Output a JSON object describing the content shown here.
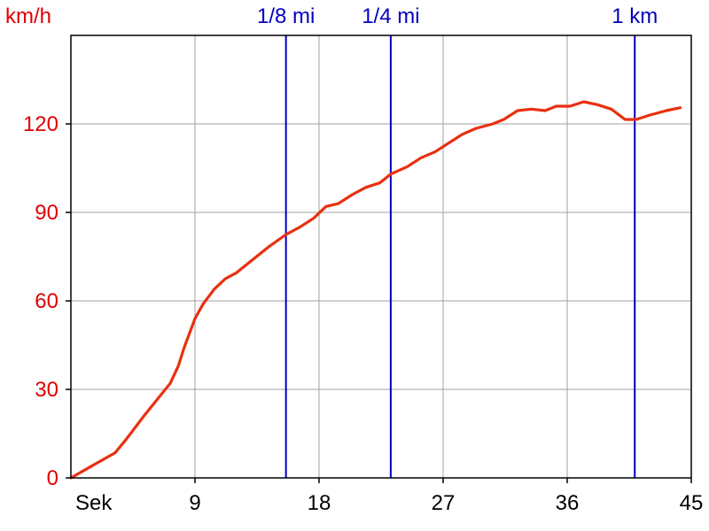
{
  "chart_data": {
    "type": "line",
    "y_unit_label": "km/h",
    "x_unit_label": "Sek",
    "xlim": [
      0,
      45
    ],
    "ylim": [
      0,
      150
    ],
    "x_ticks": [
      {
        "value": 9,
        "label": "9"
      },
      {
        "value": 18,
        "label": "18"
      },
      {
        "value": 27,
        "label": "27"
      },
      {
        "value": 36,
        "label": "36"
      },
      {
        "value": 45,
        "label": "45"
      }
    ],
    "y_ticks": [
      {
        "value": 0,
        "label": "0"
      },
      {
        "value": 30,
        "label": "30"
      },
      {
        "value": 60,
        "label": "60"
      },
      {
        "value": 90,
        "label": "90"
      },
      {
        "value": 120,
        "label": "120"
      }
    ],
    "grid": true,
    "markers": [
      {
        "label": "1/8 mi",
        "x": 15.6
      },
      {
        "label": "1/4 mi",
        "x": 23.2
      },
      {
        "label": "1 km",
        "x": 40.9
      }
    ],
    "series": [
      {
        "color": "#e83010",
        "points": [
          [
            0,
            0
          ],
          [
            1.5,
            4
          ],
          [
            3.2,
            8.5
          ],
          [
            4.0,
            13
          ],
          [
            5.3,
            21
          ],
          [
            6.5,
            28
          ],
          [
            7.2,
            32
          ],
          [
            7.8,
            38
          ],
          [
            8.2,
            44
          ],
          [
            8.6,
            49
          ],
          [
            9.0,
            54
          ],
          [
            9.6,
            59
          ],
          [
            10.4,
            64
          ],
          [
            11.2,
            67.5
          ],
          [
            12.0,
            69.5
          ],
          [
            13.2,
            74
          ],
          [
            14.4,
            78.5
          ],
          [
            15.6,
            82.5
          ],
          [
            16.6,
            85
          ],
          [
            17.6,
            88
          ],
          [
            18.5,
            92
          ],
          [
            19.4,
            93
          ],
          [
            20.4,
            96
          ],
          [
            21.4,
            98.5
          ],
          [
            22.4,
            100
          ],
          [
            23.2,
            103
          ],
          [
            24.4,
            105.5
          ],
          [
            25.4,
            108.5
          ],
          [
            26.4,
            110.5
          ],
          [
            27.4,
            113.5
          ],
          [
            28.4,
            116.5
          ],
          [
            29.4,
            118.5
          ],
          [
            30.6,
            120
          ],
          [
            31.4,
            121.5
          ],
          [
            32.4,
            124.5
          ],
          [
            33.4,
            125
          ],
          [
            34.4,
            124.5
          ],
          [
            35.2,
            126
          ],
          [
            36.2,
            126
          ],
          [
            37.2,
            127.5
          ],
          [
            38.2,
            126.5
          ],
          [
            39.2,
            125
          ],
          [
            40.2,
            121.5
          ],
          [
            41.0,
            121.5
          ],
          [
            42.0,
            123
          ],
          [
            43.2,
            124.5
          ],
          [
            44.2,
            125.5
          ]
        ]
      }
    ],
    "colors": {
      "line": "#e83010",
      "marker": "#0000c0",
      "y_text": "#e00000",
      "x_text": "#000000",
      "grid": "#a0a0a0",
      "frame": "#000000"
    }
  }
}
